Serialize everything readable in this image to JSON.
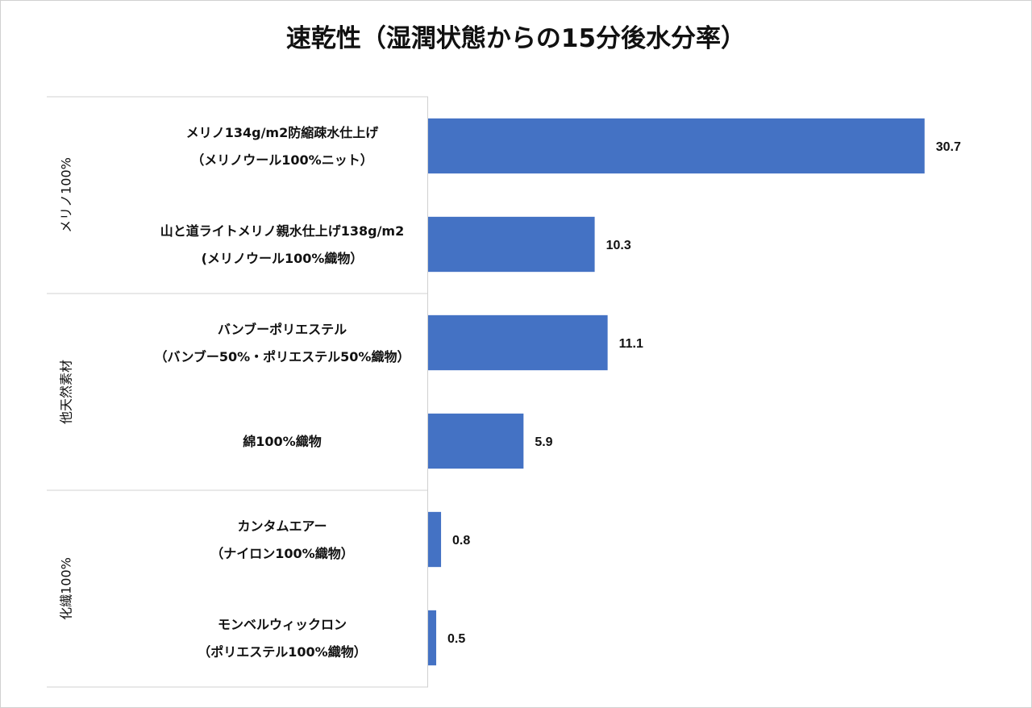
{
  "chart_data": {
    "type": "bar",
    "orientation": "horizontal",
    "title": "速乾性（湿潤状態からの15分後水分率）",
    "xlabel": "",
    "ylabel": "",
    "xlim": [
      0,
      35
    ],
    "grid": false,
    "bar_color": "#4472C4",
    "groups": [
      {
        "name": "メリノ100%",
        "categories": [
          {
            "lines": [
              "メリノ134g/m2防縮疎水仕上げ",
              "（メリノウール100%ニット）"
            ],
            "value": 30.7,
            "label": "30.7"
          },
          {
            "lines": [
              "山と道ライトメリノ親水仕上げ138g/m2",
              "(メリノウール100%織物）"
            ],
            "value": 10.3,
            "label": "10.3"
          }
        ]
      },
      {
        "name": "他天然素材",
        "categories": [
          {
            "lines": [
              "バンブーポリエステル",
              "（バンブー50%・ポリエステル50%織物）"
            ],
            "value": 11.1,
            "label": "11.1"
          },
          {
            "lines": [
              "綿100%織物"
            ],
            "value": 5.9,
            "label": "5.9"
          }
        ]
      },
      {
        "name": "化繊100%",
        "categories": [
          {
            "lines": [
              "カンタムエアー",
              "（ナイロン100%織物）"
            ],
            "value": 0.8,
            "label": "0.8"
          },
          {
            "lines": [
              "モンベルウィックロン",
              "（ポリエステル100%織物）"
            ],
            "value": 0.5,
            "label": "0.5"
          }
        ]
      }
    ]
  }
}
